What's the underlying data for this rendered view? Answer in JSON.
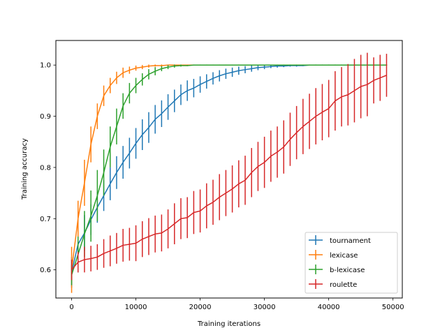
{
  "chart_data": {
    "type": "line",
    "title": "",
    "xlabel": "Training iterations",
    "ylabel": "Training accuracy",
    "xlim": [
      -2450,
      51450
    ],
    "ylim": [
      0.545,
      1.048
    ],
    "xticks": [
      0,
      10000,
      20000,
      30000,
      40000,
      50000
    ],
    "xtick_labels": [
      "0",
      "10000",
      "20000",
      "30000",
      "40000",
      "50000"
    ],
    "yticks": [
      0.6,
      0.7,
      0.8,
      0.9,
      1.0
    ],
    "ytick_labels": [
      "0.6",
      "0.7",
      "0.8",
      "0.9",
      "1.0"
    ],
    "grid": false,
    "legend_position": "bottom-right",
    "x": [
      0,
      1000,
      2000,
      3000,
      4000,
      5000,
      6000,
      7000,
      8000,
      9000,
      10000,
      11000,
      12000,
      13000,
      14000,
      15000,
      16000,
      17000,
      18000,
      19000,
      20000,
      21000,
      22000,
      23000,
      24000,
      25000,
      26000,
      27000,
      28000,
      29000,
      30000,
      31000,
      32000,
      33000,
      34000,
      35000,
      36000,
      37000,
      38000,
      39000,
      40000,
      41000,
      42000,
      43000,
      44000,
      45000,
      46000,
      47000,
      48000,
      49000
    ],
    "series": [
      {
        "name": "tournament",
        "color": "#1f77b4",
        "values": [
          0.595,
          0.65,
          0.672,
          0.698,
          0.722,
          0.745,
          0.768,
          0.79,
          0.81,
          0.828,
          0.847,
          0.864,
          0.878,
          0.894,
          0.905,
          0.918,
          0.93,
          0.942,
          0.95,
          0.955,
          0.962,
          0.968,
          0.974,
          0.979,
          0.983,
          0.986,
          0.989,
          0.991,
          0.993,
          0.995,
          0.996,
          0.997,
          0.998,
          0.998,
          0.999,
          0.999,
          0.999,
          1.0,
          1.0,
          1.0,
          1.0,
          1.0,
          1.0,
          1.0,
          1.0,
          1.0,
          1.0,
          1.0,
          1.0,
          1.0
        ],
        "errors": [
          0.03,
          0.025,
          0.035,
          0.03,
          0.03,
          0.03,
          0.032,
          0.032,
          0.032,
          0.03,
          0.03,
          0.03,
          0.03,
          0.028,
          0.026,
          0.025,
          0.022,
          0.02,
          0.02,
          0.018,
          0.016,
          0.014,
          0.012,
          0.011,
          0.01,
          0.009,
          0.008,
          0.007,
          0.006,
          0.005,
          0.004,
          0.003,
          0.003,
          0.002,
          0.002,
          0.002,
          0.001,
          0.001,
          0.001,
          0.001,
          0.001,
          0.001,
          0.001,
          0.001,
          0.001,
          0.001,
          0.001,
          0.001,
          0.001,
          0.001
        ]
      },
      {
        "name": "lexicase",
        "color": "#ff7f0e",
        "values": [
          0.6,
          0.7,
          0.77,
          0.845,
          0.9,
          0.94,
          0.96,
          0.975,
          0.985,
          0.99,
          0.994,
          0.996,
          0.998,
          0.999,
          0.999,
          1.0,
          1.0,
          1.0,
          1.0,
          1.0,
          1.0,
          1.0,
          1.0,
          1.0,
          1.0,
          1.0,
          1.0,
          1.0,
          1.0,
          1.0,
          1.0,
          1.0,
          1.0,
          1.0,
          1.0,
          1.0,
          1.0,
          1.0,
          1.0,
          1.0,
          1.0,
          1.0,
          1.0,
          1.0,
          1.0,
          1.0,
          1.0,
          1.0,
          1.0,
          1.0
        ],
        "errors": [
          0.045,
          0.035,
          0.045,
          0.035,
          0.025,
          0.02,
          0.015,
          0.012,
          0.01,
          0.007,
          0.005,
          0.004,
          0.003,
          0.002,
          0.002,
          0.001,
          0.001,
          0.001,
          0.001,
          0.001,
          0.001,
          0.001,
          0.001,
          0.001,
          0.001,
          0.001,
          0.001,
          0.001,
          0.001,
          0.001,
          0.001,
          0.001,
          0.001,
          0.001,
          0.001,
          0.001,
          0.001,
          0.001,
          0.001,
          0.001,
          0.001,
          0.001,
          0.001,
          0.001,
          0.001,
          0.001,
          0.001,
          0.001,
          0.001,
          0.001
        ]
      },
      {
        "name": "b-lexicase",
        "color": "#2ca02c",
        "values": [
          0.59,
          0.63,
          0.67,
          0.705,
          0.745,
          0.79,
          0.84,
          0.88,
          0.92,
          0.945,
          0.96,
          0.972,
          0.982,
          0.988,
          0.993,
          0.996,
          0.998,
          0.999,
          0.999,
          1.0,
          1.0,
          1.0,
          1.0,
          1.0,
          1.0,
          1.0,
          1.0,
          1.0,
          1.0,
          1.0,
          1.0,
          1.0,
          1.0,
          1.0,
          1.0,
          1.0,
          1.0,
          1.0,
          1.0,
          1.0,
          1.0,
          1.0,
          1.0,
          1.0,
          1.0,
          1.0,
          1.0,
          1.0,
          1.0,
          1.0
        ],
        "errors": [
          0.02,
          0.035,
          0.045,
          0.05,
          0.05,
          0.045,
          0.04,
          0.035,
          0.025,
          0.02,
          0.015,
          0.012,
          0.01,
          0.008,
          0.005,
          0.004,
          0.003,
          0.002,
          0.001,
          0.001,
          0.001,
          0.001,
          0.001,
          0.001,
          0.001,
          0.001,
          0.001,
          0.001,
          0.001,
          0.001,
          0.001,
          0.001,
          0.001,
          0.001,
          0.001,
          0.001,
          0.001,
          0.001,
          0.001,
          0.001,
          0.001,
          0.001,
          0.001,
          0.001,
          0.001,
          0.001,
          0.001,
          0.001,
          0.001,
          0.001
        ]
      },
      {
        "name": "roulette",
        "color": "#d62728",
        "values": [
          0.6,
          0.615,
          0.62,
          0.622,
          0.625,
          0.632,
          0.637,
          0.642,
          0.648,
          0.65,
          0.652,
          0.66,
          0.665,
          0.67,
          0.672,
          0.68,
          0.69,
          0.7,
          0.702,
          0.712,
          0.715,
          0.725,
          0.732,
          0.742,
          0.75,
          0.758,
          0.768,
          0.775,
          0.79,
          0.802,
          0.81,
          0.822,
          0.83,
          0.84,
          0.855,
          0.868,
          0.88,
          0.89,
          0.9,
          0.908,
          0.915,
          0.93,
          0.938,
          0.942,
          0.95,
          0.958,
          0.962,
          0.97,
          0.975,
          0.98
        ],
        "errors": [
          0.02,
          0.02,
          0.025,
          0.025,
          0.025,
          0.028,
          0.03,
          0.03,
          0.032,
          0.032,
          0.035,
          0.035,
          0.036,
          0.036,
          0.036,
          0.038,
          0.04,
          0.04,
          0.04,
          0.042,
          0.042,
          0.044,
          0.044,
          0.045,
          0.045,
          0.046,
          0.046,
          0.048,
          0.048,
          0.048,
          0.05,
          0.05,
          0.05,
          0.052,
          0.052,
          0.052,
          0.054,
          0.054,
          0.055,
          0.055,
          0.056,
          0.058,
          0.058,
          0.06,
          0.062,
          0.062,
          0.062,
          0.045,
          0.045,
          0.042
        ]
      }
    ]
  }
}
